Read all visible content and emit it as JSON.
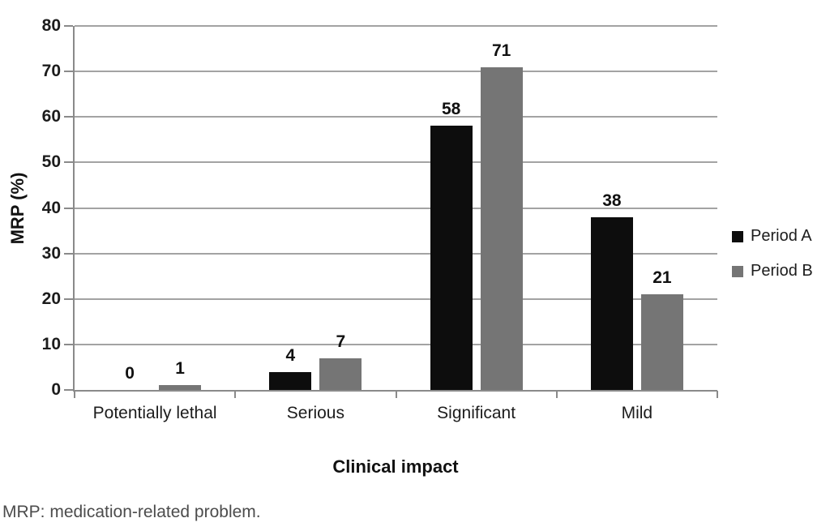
{
  "figure": {
    "footnote": "MRP: medication-related problem."
  },
  "chart_data": {
    "type": "bar",
    "title": "",
    "categories": [
      "Potentially lethal",
      "Serious",
      "Significant",
      "Mild"
    ],
    "series": [
      {
        "name": "Period A",
        "color": "#0d0d0d",
        "values": [
          0,
          4,
          58,
          38
        ]
      },
      {
        "name": "Period B",
        "color": "#757575",
        "values": [
          1,
          7,
          71,
          21
        ]
      }
    ],
    "xlabel": "Clinical impact",
    "ylabel": "MRP (%)",
    "ylim": [
      0,
      80
    ],
    "ytick_step": 10,
    "yticks": [
      0,
      10,
      20,
      30,
      40,
      50,
      60,
      70,
      80
    ],
    "grid": true,
    "legend_position": "right",
    "bar_value_labels": true
  }
}
